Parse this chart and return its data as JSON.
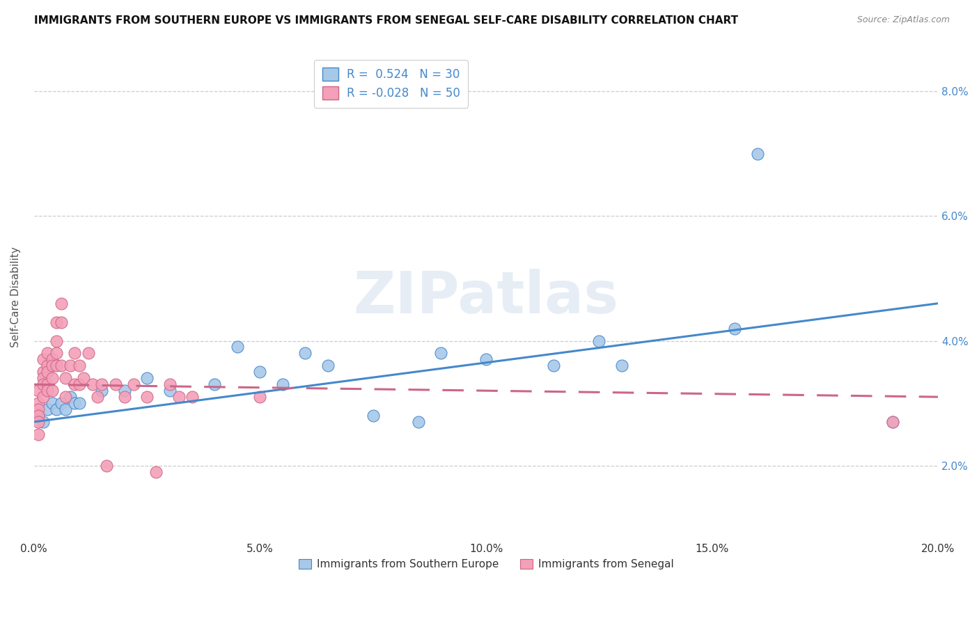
{
  "title": "IMMIGRANTS FROM SOUTHERN EUROPE VS IMMIGRANTS FROM SENEGAL SELF-CARE DISABILITY CORRELATION CHART",
  "source": "Source: ZipAtlas.com",
  "ylabel": "Self-Care Disability",
  "xlim": [
    0.0,
    0.2
  ],
  "ylim": [
    0.008,
    0.086
  ],
  "yticks": [
    0.02,
    0.04,
    0.06,
    0.08
  ],
  "ytick_labels": [
    "2.0%",
    "4.0%",
    "6.0%",
    "8.0%"
  ],
  "xticks": [
    0.0,
    0.05,
    0.1,
    0.15,
    0.2
  ],
  "xtick_labels": [
    "0.0%",
    "5.0%",
    "10.0%",
    "15.0%",
    "20.0%"
  ],
  "r_blue": 0.524,
  "n_blue": 30,
  "r_pink": -0.028,
  "n_pink": 50,
  "legend_label_blue": "Immigrants from Southern Europe",
  "legend_label_pink": "Immigrants from Senegal",
  "blue_fill": "#a8c8e8",
  "pink_fill": "#f4a0b8",
  "blue_line_color": "#4488cc",
  "pink_line_color": "#cc6688",
  "watermark": "ZIPatlas",
  "blue_x": [
    0.001,
    0.002,
    0.003,
    0.004,
    0.005,
    0.006,
    0.007,
    0.008,
    0.009,
    0.01,
    0.015,
    0.02,
    0.025,
    0.03,
    0.04,
    0.045,
    0.05,
    0.055,
    0.06,
    0.065,
    0.075,
    0.085,
    0.09,
    0.1,
    0.115,
    0.125,
    0.13,
    0.155,
    0.16,
    0.19
  ],
  "blue_y": [
    0.028,
    0.027,
    0.029,
    0.03,
    0.029,
    0.03,
    0.029,
    0.031,
    0.03,
    0.03,
    0.032,
    0.032,
    0.034,
    0.032,
    0.033,
    0.039,
    0.035,
    0.033,
    0.038,
    0.036,
    0.028,
    0.027,
    0.038,
    0.037,
    0.036,
    0.04,
    0.036,
    0.042,
    0.07,
    0.027
  ],
  "pink_x": [
    0.001,
    0.001,
    0.001,
    0.001,
    0.001,
    0.001,
    0.002,
    0.002,
    0.002,
    0.002,
    0.002,
    0.003,
    0.003,
    0.003,
    0.003,
    0.003,
    0.004,
    0.004,
    0.004,
    0.004,
    0.005,
    0.005,
    0.005,
    0.005,
    0.006,
    0.006,
    0.006,
    0.007,
    0.007,
    0.008,
    0.009,
    0.009,
    0.01,
    0.01,
    0.011,
    0.012,
    0.013,
    0.014,
    0.015,
    0.016,
    0.018,
    0.02,
    0.022,
    0.025,
    0.027,
    0.03,
    0.032,
    0.035,
    0.05,
    0.19
  ],
  "pink_y": [
    0.032,
    0.03,
    0.029,
    0.028,
    0.027,
    0.025,
    0.037,
    0.035,
    0.034,
    0.033,
    0.031,
    0.038,
    0.036,
    0.035,
    0.033,
    0.032,
    0.037,
    0.036,
    0.034,
    0.032,
    0.043,
    0.04,
    0.038,
    0.036,
    0.046,
    0.043,
    0.036,
    0.034,
    0.031,
    0.036,
    0.038,
    0.033,
    0.036,
    0.033,
    0.034,
    0.038,
    0.033,
    0.031,
    0.033,
    0.02,
    0.033,
    0.031,
    0.033,
    0.031,
    0.019,
    0.033,
    0.031,
    0.031,
    0.031,
    0.027
  ],
  "blue_trend_x": [
    0.0,
    0.2
  ],
  "blue_trend_y": [
    0.027,
    0.046
  ],
  "pink_trend_x": [
    0.0,
    0.2
  ],
  "pink_trend_y": [
    0.033,
    0.031
  ]
}
